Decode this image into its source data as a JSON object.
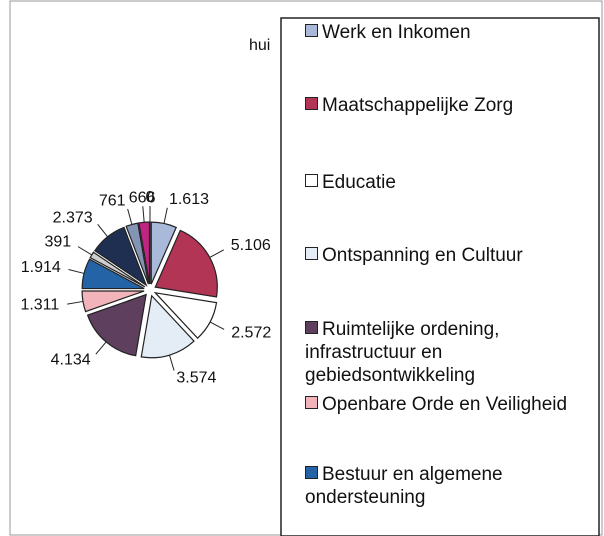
{
  "chart_data": {
    "type": "pie",
    "title": "hui",
    "categories": [
      "Werk en Inkomen",
      "Maatschappelijke Zorg",
      "Educatie",
      "Ontspanning en Cultuur",
      "Ruimtelijke ordening, infrastructuur en gebiedsontwikkeling",
      "Openbare Orde en Veiligheid",
      "Bestuur en algemene ondersteuning",
      null,
      null,
      null,
      null,
      null
    ],
    "values": [
      1613,
      5106,
      2572,
      3574,
      4134,
      1311,
      1914,
      391,
      2373,
      761,
      666,
      0
    ],
    "value_labels": [
      "1.613",
      "5.106",
      "2.572",
      "3.574",
      "4.134",
      "1.311",
      "1.914",
      "391",
      "2.373",
      "761",
      "666",
      "0"
    ],
    "colors": [
      "#a9b9d9",
      "#b33556",
      "#ffffff",
      "#e4edf6",
      "#5e3f5e",
      "#f2b3bb",
      "#2464a6",
      "#cfcfcf",
      "#1f2f52",
      "#8394b4",
      "#c22484",
      "#e6e24a"
    ]
  }
}
